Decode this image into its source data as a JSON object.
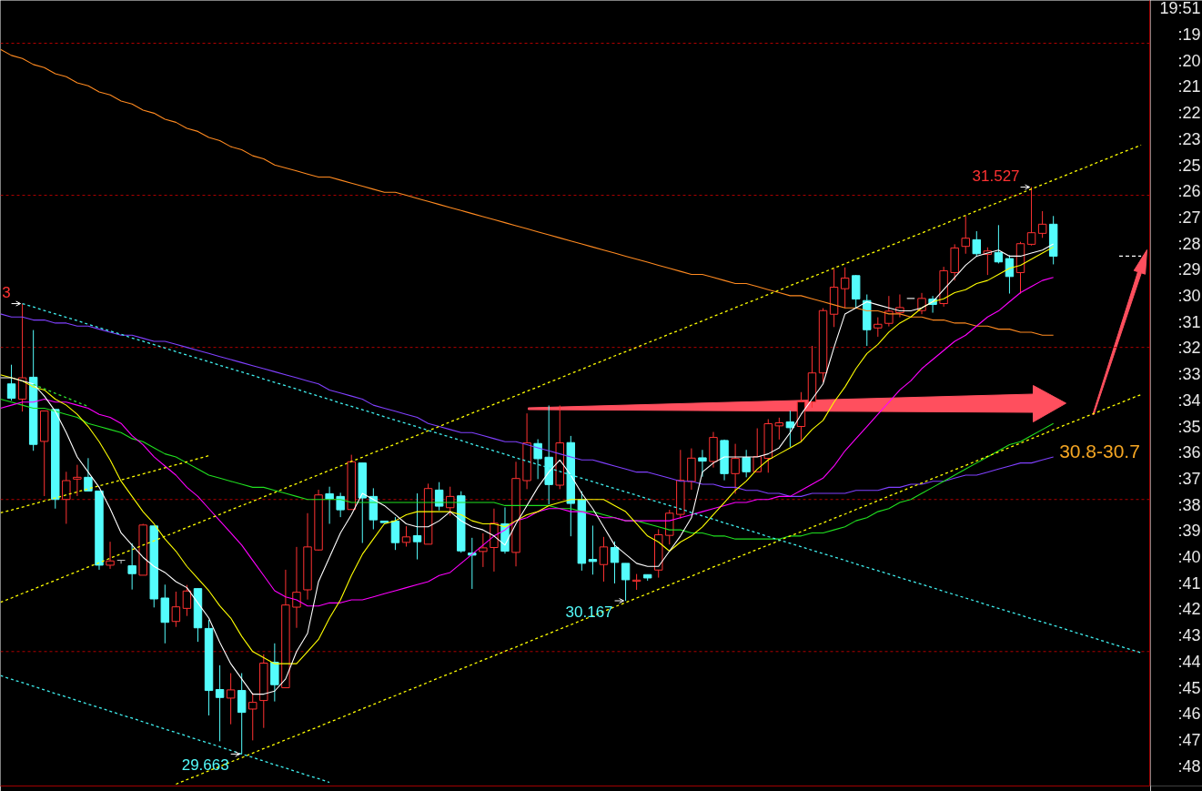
{
  "chart_data": {
    "type": "candlestick",
    "categories": [
      null,
      null,
      null,
      null,
      null,
      null,
      null,
      null,
      null,
      null,
      null,
      null,
      null,
      null,
      null,
      null,
      null,
      null,
      null,
      null,
      null,
      null,
      null,
      null,
      null,
      null,
      null,
      null,
      null,
      null,
      null,
      null,
      null,
      null,
      null,
      null,
      null,
      null,
      null,
      null,
      null,
      null,
      null,
      null,
      null,
      null,
      null,
      null,
      null,
      null,
      null,
      null,
      null,
      null,
      null,
      null,
      null,
      null,
      null,
      null,
      null,
      null,
      null,
      null,
      null,
      null,
      null,
      null,
      null,
      null,
      null,
      null,
      null,
      null,
      null,
      null,
      null,
      null,
      null,
      null,
      null,
      null,
      null,
      null,
      null,
      null,
      null,
      null,
      null,
      null,
      null,
      null,
      null,
      null,
      null,
      null,
      null,
      null,
      null,
      null,
      null,
      null,
      null,
      null,
      null
    ],
    "ohlc": [
      null,
      [
        30.88,
        30.943,
        30.825,
        30.833
      ],
      [
        30.83,
        31.144,
        30.789,
        30.9
      ],
      [
        30.902,
        31.057,
        30.66,
        30.681
      ],
      [
        30.691,
        30.791,
        30.511,
        30.791
      ],
      [
        30.796,
        30.796,
        30.47,
        30.5
      ],
      [
        30.5,
        30.591,
        30.42,
        30.562
      ],
      [
        30.567,
        30.614,
        30.511,
        30.573
      ],
      [
        30.573,
        30.636,
        30.528,
        30.528
      ],
      [
        30.528,
        30.528,
        30.269,
        30.284
      ],
      [
        30.284,
        30.361,
        30.272,
        30.298
      ],
      [
        30.3,
        30.3,
        30.289,
        30.3
      ],
      [
        30.282,
        30.356,
        30.204,
        30.256
      ],
      [
        30.251,
        30.42,
        30.251,
        30.416
      ],
      [
        30.413,
        30.413,
        30.145,
        30.173
      ],
      [
        30.176,
        30.22,
        30.027,
        30.096
      ],
      [
        30.099,
        30.197,
        30.081,
        30.147
      ],
      [
        30.142,
        30.219,
        30.117,
        30.199
      ],
      [
        30.207,
        30.207,
        30.032,
        30.078
      ],
      [
        30.076,
        30.104,
        29.79,
        29.872
      ],
      [
        29.875,
        29.955,
        29.705,
        29.849
      ],
      [
        29.847,
        29.929,
        29.761,
        29.874
      ],
      [
        29.872,
        29.929,
        29.663,
        29.8
      ],
      [
        29.811,
        29.864,
        29.708,
        29.833
      ],
      [
        29.839,
        29.991,
        29.749,
        29.962
      ],
      [
        29.965,
        30.027,
        29.836,
        29.891
      ],
      [
        29.881,
        30.269,
        29.881,
        30.153
      ],
      [
        30.146,
        30.344,
        30.078,
        30.195
      ],
      [
        30.203,
        30.455,
        30.171,
        30.344
      ],
      [
        30.334,
        30.532,
        30.332,
        30.515
      ],
      [
        30.519,
        30.542,
        30.42,
        30.502
      ],
      [
        30.51,
        30.522,
        30.442,
        30.466
      ],
      [
        30.467,
        30.647,
        30.467,
        30.624
      ],
      [
        30.62,
        30.62,
        30.357,
        30.505
      ],
      [
        30.51,
        30.537,
        30.402,
        30.433
      ],
      [
        30.429,
        30.429,
        30.424,
        30.424
      ],
      [
        30.429,
        30.442,
        30.334,
        30.358
      ],
      [
        30.359,
        30.412,
        30.345,
        30.377
      ],
      [
        30.381,
        30.52,
        30.303,
        30.361
      ],
      [
        30.353,
        30.552,
        30.353,
        30.536
      ],
      [
        30.531,
        30.557,
        30.464,
        30.478
      ],
      [
        30.473,
        30.542,
        30.447,
        30.51
      ],
      [
        30.512,
        30.527,
        30.325,
        30.331
      ],
      [
        30.324,
        30.374,
        30.206,
        30.317
      ],
      [
        30.329,
        30.389,
        30.278,
        30.341
      ],
      [
        30.342,
        30.47,
        30.263,
        30.422
      ],
      [
        30.42,
        30.474,
        30.322,
        30.33
      ],
      [
        30.326,
        30.624,
        30.28,
        30.569
      ],
      [
        30.562,
        30.783,
        30.534,
        30.686
      ],
      [
        30.684,
        30.698,
        30.567,
        30.634
      ],
      [
        30.639,
        30.809,
        30.484,
        30.549
      ],
      [
        30.547,
        30.809,
        30.534,
        30.686
      ],
      [
        30.687,
        30.709,
        30.379,
        30.487
      ],
      [
        30.499,
        30.527,
        30.266,
        30.29
      ],
      [
        30.303,
        30.414,
        30.253,
        30.296
      ],
      [
        30.286,
        30.377,
        30.23,
        30.344
      ],
      [
        30.342,
        30.362,
        30.224,
        30.293
      ],
      [
        30.29,
        30.29,
        30.167,
        30.236
      ],
      [
        30.231,
        30.255,
        30.203,
        30.235
      ],
      [
        30.253,
        30.253,
        30.233,
        30.242
      ],
      [
        30.268,
        30.402,
        30.243,
        30.384
      ],
      [
        30.382,
        30.466,
        30.352,
        30.455
      ],
      [
        30.451,
        30.663,
        30.437,
        30.563
      ],
      [
        30.559,
        30.668,
        30.532,
        30.636
      ],
      [
        30.637,
        30.663,
        30.575,
        30.626
      ],
      [
        30.625,
        30.722,
        30.605,
        30.704
      ],
      [
        30.694,
        30.697,
        30.563,
        30.585
      ],
      [
        30.585,
        30.683,
        30.519,
        30.635
      ],
      [
        30.638,
        30.663,
        30.573,
        30.591
      ],
      [
        30.591,
        30.734,
        30.591,
        30.641
      ],
      [
        30.635,
        30.764,
        30.588,
        30.749
      ],
      [
        30.742,
        30.769,
        30.697,
        30.752
      ],
      [
        30.755,
        30.792,
        30.673,
        30.736
      ],
      [
        30.74,
        30.853,
        30.69,
        30.821
      ],
      [
        30.821,
        31.005,
        30.802,
        30.916
      ],
      [
        30.916,
        31.129,
        30.886,
        31.121
      ],
      [
        31.109,
        31.258,
        31.067,
        31.198
      ],
      [
        31.193,
        31.263,
        31.129,
        31.228
      ],
      [
        31.236,
        31.238,
        31.129,
        31.159
      ],
      [
        31.154,
        31.174,
        31.005,
        31.058
      ],
      [
        31.064,
        31.099,
        31.035,
        31.076
      ],
      [
        31.079,
        31.169,
        31.069,
        31.119
      ],
      [
        31.114,
        31.174,
        31.099,
        31.131
      ],
      [
        31.161,
        31.161,
        31.161,
        31.161
      ],
      [
        31.121,
        31.179,
        31.109,
        31.161
      ],
      [
        31.159,
        31.169,
        31.114,
        31.141
      ],
      [
        31.144,
        31.265,
        31.134,
        31.252
      ],
      [
        31.246,
        31.339,
        31.22,
        31.327
      ],
      [
        31.332,
        31.432,
        31.308,
        31.359
      ],
      [
        31.354,
        31.382,
        31.298,
        31.308
      ],
      [
        31.306,
        31.329,
        31.238,
        31.317
      ],
      [
        31.312,
        31.402,
        31.276,
        31.281
      ],
      [
        31.292,
        31.303,
        31.177,
        31.233
      ],
      [
        31.246,
        31.347,
        31.177,
        31.341
      ],
      [
        31.339,
        31.527,
        31.335,
        31.377
      ],
      [
        31.375,
        31.448,
        31.36,
        31.405
      ],
      [
        31.405,
        31.432,
        31.273,
        31.3
      ],
      null,
      null,
      null,
      null,
      null,
      null,
      null,
      null
    ],
    "colors": [
      null,
      "#54fcfc",
      "#ff3232",
      "#54fcfc",
      "#ff3232",
      "#54fcfc",
      "#ff3232",
      "#ff3232",
      "#54fcfc",
      "#54fcfc",
      "#ff3232",
      "#c0c0c0",
      "#54fcfc",
      "#ff3232",
      "#54fcfc",
      "#54fcfc",
      "#ff3232",
      "#ff3232",
      "#54fcfc",
      "#54fcfc",
      "#54fcfc",
      "#ff3232",
      "#54fcfc",
      "#ff3232",
      "#ff3232",
      "#54fcfc",
      "#ff3232",
      "#ff3232",
      "#ff3232",
      "#ff3232",
      "#54fcfc",
      "#54fcfc",
      "#ff3232",
      "#54fcfc",
      "#54fcfc",
      "#54fcfc",
      "#54fcfc",
      "#ff3232",
      "#54fcfc",
      "#ff3232",
      "#54fcfc",
      "#ff3232",
      "#54fcfc",
      "#54fcfc",
      "#ff3232",
      "#ff3232",
      "#54fcfc",
      "#ff3232",
      "#ff3232",
      "#54fcfc",
      "#54fcfc",
      "#ff3232",
      "#54fcfc",
      "#54fcfc",
      "#54fcfc",
      "#ff3232",
      "#54fcfc",
      "#54fcfc",
      "#ff3232",
      "#54fcfc",
      "#ff3232",
      "#ff3232",
      "#ff3232",
      "#ff3232",
      "#54fcfc",
      "#ff3232",
      "#54fcfc",
      "#ff3232",
      "#54fcfc",
      "#ff3232",
      "#ff3232",
      "#ff3232",
      "#54fcfc",
      "#ff3232",
      "#ff3232",
      "#ff3232",
      "#ff3232",
      "#ff3232",
      "#54fcfc",
      "#54fcfc",
      "#ff3232",
      "#ff3232",
      "#ff3232",
      "#c0c0c0",
      "#ff3232",
      "#54fcfc",
      "#ff3232",
      "#ff3232",
      "#ff3232",
      "#54fcfc",
      "#ff3232",
      "#54fcfc",
      "#54fcfc",
      "#ff3232",
      "#ff3232",
      "#ff3232",
      "#54fcfc",
      null,
      null,
      null,
      null,
      null,
      null,
      null,
      null
    ],
    "series": [
      {
        "type": "line",
        "color": "#ff8a20",
        "values": [
          31.98,
          31.96,
          31.95,
          31.93,
          31.92,
          31.9,
          31.89,
          31.87,
          31.86,
          31.84,
          31.83,
          31.81,
          31.8,
          31.78,
          31.77,
          31.75,
          31.74,
          31.72,
          31.71,
          31.69,
          31.68,
          31.66,
          31.65,
          31.63,
          31.62,
          31.6,
          31.59,
          31.58,
          31.57,
          31.56,
          31.56,
          31.55,
          31.54,
          31.53,
          31.52,
          31.51,
          31.51,
          31.5,
          31.49,
          31.48,
          31.47,
          31.46,
          31.45,
          31.44,
          31.43,
          31.42,
          31.41,
          31.4,
          31.39,
          31.38,
          31.37,
          31.36,
          31.35,
          31.34,
          31.33,
          31.32,
          31.31,
          31.3,
          31.29,
          31.28,
          31.27,
          31.26,
          31.25,
          31.24,
          31.24,
          31.23,
          31.22,
          31.21,
          31.21,
          31.2,
          31.19,
          31.18,
          31.17,
          31.17,
          31.16,
          31.15,
          31.14,
          31.13,
          31.13,
          31.12,
          31.12,
          31.11,
          31.11,
          31.1,
          31.1,
          31.09,
          31.09,
          31.08,
          31.08,
          31.07,
          31.07,
          31.06,
          31.06,
          31.05,
          31.05,
          31.04,
          31.04,
          null,
          null,
          null,
          null,
          null,
          null,
          null,
          null
        ]
      },
      {
        "type": "line",
        "color": "#8040ff",
        "values": [
          31.11,
          31.1,
          31.1,
          31.09,
          31.09,
          31.08,
          31.08,
          31.07,
          31.07,
          31.06,
          31.05,
          31.04,
          31.04,
          31.03,
          31.02,
          31.02,
          31.01,
          31.0,
          30.99,
          30.98,
          30.97,
          30.96,
          30.95,
          30.94,
          30.93,
          30.92,
          30.91,
          30.9,
          30.89,
          30.88,
          30.86,
          30.85,
          30.84,
          30.83,
          30.81,
          30.8,
          30.79,
          30.78,
          30.77,
          30.75,
          30.74,
          30.73,
          30.72,
          30.72,
          30.71,
          30.7,
          30.69,
          30.69,
          30.68,
          30.67,
          30.66,
          30.65,
          30.64,
          30.63,
          30.63,
          30.62,
          30.61,
          30.6,
          30.59,
          30.59,
          30.58,
          30.57,
          30.56,
          30.56,
          30.55,
          30.55,
          30.54,
          30.54,
          30.53,
          30.53,
          30.52,
          30.52,
          30.51,
          30.51,
          30.52,
          30.52,
          30.52,
          30.52,
          30.53,
          30.53,
          30.53,
          30.54,
          30.54,
          30.55,
          30.55,
          30.56,
          30.56,
          30.57,
          30.58,
          30.58,
          30.59,
          30.6,
          30.61,
          30.62,
          30.62,
          30.63,
          30.64,
          null,
          null,
          null,
          null,
          null,
          null,
          null,
          null
        ]
      },
      {
        "type": "line",
        "color": "#20e020",
        "values": [
          30.83,
          30.82,
          30.81,
          30.8,
          30.8,
          30.79,
          30.78,
          30.77,
          30.75,
          30.74,
          30.73,
          30.72,
          30.7,
          30.69,
          30.67,
          30.65,
          30.64,
          30.62,
          30.6,
          30.58,
          30.57,
          30.56,
          30.55,
          30.54,
          30.54,
          30.53,
          30.52,
          30.51,
          30.5,
          30.5,
          30.5,
          30.5,
          30.49,
          30.49,
          30.49,
          30.49,
          30.49,
          30.49,
          30.49,
          30.49,
          30.49,
          30.49,
          30.49,
          30.49,
          30.49,
          30.49,
          30.48,
          30.48,
          30.48,
          30.48,
          30.48,
          30.47,
          30.47,
          30.46,
          30.46,
          30.45,
          30.44,
          30.43,
          30.43,
          30.42,
          30.41,
          30.4,
          30.4,
          30.39,
          30.39,
          30.38,
          30.38,
          30.37,
          30.37,
          30.37,
          30.37,
          30.37,
          30.38,
          30.38,
          30.39,
          30.39,
          30.4,
          30.41,
          30.43,
          30.44,
          30.46,
          30.47,
          30.49,
          30.5,
          30.52,
          30.54,
          30.56,
          30.58,
          30.6,
          30.62,
          30.64,
          30.66,
          30.68,
          30.69,
          30.71,
          30.73,
          30.75,
          null,
          null,
          null,
          null,
          null,
          null,
          null,
          null
        ]
      },
      {
        "type": "line",
        "color": "#ff00ff",
        "values": [
          30.8,
          30.81,
          30.82,
          30.82,
          30.83,
          30.82,
          30.82,
          30.81,
          30.8,
          30.78,
          30.77,
          30.75,
          30.71,
          30.68,
          30.64,
          30.61,
          30.58,
          30.54,
          30.51,
          30.47,
          30.43,
          30.39,
          30.35,
          30.3,
          30.25,
          30.2,
          30.18,
          30.17,
          30.15,
          30.15,
          30.16,
          30.16,
          30.17,
          30.17,
          30.18,
          30.19,
          30.2,
          30.21,
          30.22,
          30.23,
          30.25,
          30.26,
          30.29,
          30.32,
          30.35,
          30.38,
          30.4,
          30.43,
          30.44,
          30.46,
          30.47,
          30.47,
          30.46,
          30.46,
          30.45,
          30.44,
          30.44,
          30.43,
          30.43,
          30.43,
          30.43,
          30.43,
          30.44,
          30.45,
          30.46,
          30.47,
          30.48,
          30.49,
          30.49,
          30.5,
          30.5,
          30.51,
          30.51,
          30.53,
          30.55,
          30.57,
          30.61,
          30.66,
          30.7,
          30.74,
          30.78,
          30.82,
          30.86,
          30.89,
          30.93,
          30.96,
          30.99,
          31.02,
          31.04,
          31.07,
          31.1,
          31.12,
          31.15,
          31.18,
          31.2,
          31.22,
          31.23,
          null,
          null,
          null,
          null,
          null,
          null,
          null,
          null
        ]
      },
      {
        "type": "line",
        "color": "#ffff00",
        "values": [
          30.91,
          30.9,
          30.89,
          30.87,
          30.86,
          30.83,
          30.81,
          30.78,
          30.74,
          30.69,
          30.63,
          30.56,
          30.51,
          30.46,
          30.42,
          30.37,
          30.33,
          30.28,
          30.24,
          30.2,
          30.15,
          30.11,
          30.05,
          30.0,
          29.98,
          29.96,
          29.96,
          29.96,
          30.0,
          30.04,
          30.11,
          30.17,
          30.25,
          30.32,
          30.37,
          30.42,
          30.43,
          30.45,
          30.46,
          30.46,
          30.46,
          30.46,
          30.45,
          30.43,
          30.42,
          30.42,
          30.41,
          30.43,
          30.45,
          30.46,
          30.48,
          30.49,
          30.5,
          30.5,
          30.5,
          30.5,
          30.48,
          30.46,
          30.42,
          30.38,
          30.36,
          30.33,
          30.36,
          30.38,
          30.41,
          30.45,
          30.49,
          30.53,
          30.56,
          30.6,
          30.63,
          30.65,
          30.67,
          30.69,
          30.73,
          30.76,
          30.82,
          30.87,
          30.93,
          30.98,
          31.01,
          31.05,
          31.08,
          31.1,
          31.13,
          31.15,
          31.16,
          31.18,
          31.19,
          31.21,
          31.22,
          31.24,
          31.26,
          31.27,
          31.29,
          31.31,
          31.33,
          null,
          null,
          null,
          null,
          null,
          null,
          null,
          null
        ]
      },
      {
        "type": "line",
        "color": "#ffffff",
        "values": [
          30.9,
          30.9,
          30.89,
          30.88,
          30.84,
          30.79,
          30.72,
          30.64,
          30.59,
          30.54,
          30.47,
          30.39,
          30.35,
          30.31,
          30.28,
          30.26,
          30.23,
          30.21,
          30.16,
          30.11,
          30.03,
          29.96,
          29.91,
          29.86,
          29.86,
          29.87,
          29.91,
          30.0,
          30.06,
          30.23,
          30.31,
          30.39,
          30.45,
          30.52,
          30.5,
          30.48,
          30.45,
          30.42,
          30.41,
          30.41,
          30.43,
          30.46,
          30.43,
          30.41,
          30.4,
          30.38,
          30.35,
          30.42,
          30.48,
          30.54,
          30.59,
          30.63,
          30.58,
          30.52,
          30.47,
          30.41,
          30.35,
          30.32,
          30.29,
          30.28,
          30.28,
          30.33,
          30.38,
          30.44,
          30.59,
          30.62,
          30.64,
          30.64,
          30.64,
          30.64,
          30.65,
          30.67,
          30.72,
          30.78,
          30.83,
          30.88,
          31.0,
          31.11,
          31.13,
          31.15,
          31.14,
          31.13,
          31.12,
          31.12,
          31.13,
          31.15,
          31.19,
          31.23,
          31.27,
          31.3,
          31.31,
          31.32,
          31.3,
          31.3,
          31.31,
          31.32,
          31.34,
          null,
          null,
          null,
          null,
          null,
          null,
          null,
          null
        ]
      },
      {
        "type": "line",
        "color": "#ffff00",
        "line_style": "dotted",
        "values": [
          30.162,
          30.176,
          30.191,
          30.205,
          30.22,
          30.234,
          30.249,
          30.263,
          30.278,
          30.292,
          30.307,
          30.321,
          30.335,
          30.35,
          30.364,
          30.379,
          30.393,
          30.408,
          30.422,
          30.437,
          30.451,
          30.466,
          30.48,
          30.494,
          30.509,
          30.523,
          30.538,
          30.552,
          30.567,
          30.581,
          30.596,
          30.61,
          30.625,
          30.639,
          30.654,
          30.668,
          30.682,
          30.697,
          30.711,
          30.726,
          30.74,
          30.755,
          30.769,
          30.784,
          30.798,
          30.813,
          30.827,
          30.841,
          30.856,
          30.87,
          30.885,
          30.899,
          30.914,
          30.928,
          30.943,
          30.957,
          30.972,
          30.986,
          31.0,
          31.015,
          31.029,
          31.044,
          31.058,
          31.073,
          31.087,
          31.102,
          31.116,
          31.131,
          31.145,
          31.159,
          31.174,
          31.188,
          31.203,
          31.217,
          31.232,
          31.246,
          31.261,
          31.275,
          31.29,
          31.304,
          31.318,
          31.333,
          31.347,
          31.362,
          31.376,
          31.391,
          31.405,
          31.42,
          31.434,
          31.449,
          31.463,
          31.477,
          31.492,
          31.506,
          31.521,
          31.535,
          31.55,
          31.564,
          31.579,
          31.593,
          31.608,
          31.622,
          31.637,
          31.651,
          31.665
        ]
      },
      {
        "type": "line",
        "color": "#ffff00",
        "line_style": "dotted",
        "values": [
          null,
          null,
          null,
          null,
          null,
          null,
          null,
          null,
          null,
          null,
          null,
          null,
          null,
          null,
          null,
          null,
          29.564,
          29.579,
          29.593,
          29.608,
          29.622,
          29.637,
          29.651,
          29.666,
          29.681,
          29.695,
          29.71,
          29.724,
          29.739,
          29.753,
          29.768,
          29.782,
          29.797,
          29.812,
          29.826,
          29.841,
          29.855,
          29.87,
          29.884,
          29.899,
          29.914,
          29.928,
          29.943,
          29.957,
          29.972,
          29.986,
          30.001,
          30.015,
          30.03,
          30.045,
          30.059,
          30.074,
          30.088,
          30.103,
          30.117,
          30.132,
          30.147,
          30.161,
          30.176,
          30.19,
          30.205,
          30.219,
          30.234,
          30.248,
          30.263,
          30.278,
          30.292,
          30.307,
          30.321,
          30.336,
          30.35,
          30.365,
          30.38,
          30.394,
          30.409,
          30.423,
          30.438,
          30.452,
          30.467,
          30.481,
          30.496,
          30.511,
          30.525,
          30.54,
          30.554,
          30.569,
          30.583,
          30.598,
          30.612,
          30.627,
          30.642,
          30.656,
          30.671,
          30.685,
          30.7,
          30.714,
          30.729,
          30.744,
          30.758,
          30.773,
          30.787,
          30.802,
          30.816,
          30.831,
          30.845
        ]
      },
      {
        "type": "line",
        "color": "#ffff00",
        "line_style": "dotted",
        "values": [
          30.456,
          30.465,
          30.475,
          30.485,
          30.495,
          30.505,
          30.515,
          30.525,
          30.535,
          30.545,
          30.554,
          30.564,
          30.574,
          30.584,
          30.594,
          30.604,
          30.614,
          30.624,
          30.634,
          30.644,
          null,
          null,
          null,
          null,
          null,
          null,
          null,
          null,
          null,
          null,
          null,
          null,
          null,
          null,
          null,
          null,
          null,
          null,
          null,
          null,
          null,
          null,
          null,
          null,
          null,
          null,
          null,
          null,
          null,
          null,
          null,
          null,
          null,
          null,
          null,
          null,
          null,
          null,
          null,
          null,
          null,
          null,
          null,
          null,
          null,
          null,
          null,
          null,
          null,
          null,
          null,
          null,
          null,
          null,
          null,
          null,
          null,
          null,
          null,
          null,
          null,
          null,
          null,
          null,
          null,
          null,
          null,
          null,
          null,
          null,
          null,
          null,
          null,
          null,
          null,
          null,
          null,
          null,
          null,
          null,
          null,
          null,
          null,
          null,
          null
        ]
      },
      {
        "type": "line",
        "color": "#40f0f0",
        "line_style": "dotted",
        "values": [
          null,
          null,
          31.144,
          31.133,
          31.121,
          31.11,
          31.099,
          31.088,
          31.076,
          31.065,
          31.054,
          31.043,
          31.031,
          31.02,
          31.009,
          30.998,
          30.986,
          30.975,
          30.964,
          30.953,
          30.941,
          30.93,
          30.919,
          30.908,
          30.896,
          30.885,
          30.874,
          30.863,
          30.851,
          30.84,
          30.829,
          30.817,
          30.806,
          30.795,
          30.784,
          30.772,
          30.761,
          30.75,
          30.739,
          30.727,
          30.716,
          30.705,
          30.694,
          30.682,
          30.671,
          30.66,
          30.649,
          30.637,
          30.626,
          30.615,
          30.604,
          30.592,
          30.581,
          30.57,
          30.559,
          30.547,
          30.536,
          30.525,
          30.514,
          30.502,
          30.491,
          30.48,
          30.469,
          30.457,
          30.446,
          30.435,
          30.423,
          30.412,
          30.401,
          30.39,
          30.378,
          30.367,
          30.356,
          30.345,
          30.333,
          30.322,
          30.311,
          30.3,
          30.288,
          30.277,
          30.266,
          30.255,
          30.243,
          30.232,
          30.221,
          30.21,
          30.198,
          30.187,
          30.176,
          30.165,
          30.153,
          30.142,
          30.131,
          30.12,
          30.108,
          30.097,
          30.086,
          30.075,
          30.063,
          30.052,
          30.041,
          30.029,
          30.018,
          30.007,
          29.996
        ]
      },
      {
        "type": "line",
        "color": "#40f0f0",
        "line_style": "dotted",
        "values": [
          29.921,
          29.909,
          29.898,
          29.886,
          29.874,
          29.862,
          29.851,
          29.839,
          29.827,
          29.816,
          29.804,
          29.792,
          29.781,
          29.769,
          29.757,
          29.745,
          29.734,
          29.722,
          29.71,
          29.699,
          29.687,
          29.675,
          29.663,
          29.652,
          29.64,
          29.628,
          29.617,
          29.605,
          29.593,
          29.582,
          29.57,
          null,
          null,
          null,
          null,
          null,
          null,
          null,
          null,
          null,
          null,
          null,
          null,
          null,
          null,
          null,
          null,
          null,
          null,
          null,
          null,
          null,
          null,
          null,
          null,
          null,
          null,
          null,
          null,
          null,
          null,
          null,
          null,
          null,
          null,
          null,
          null,
          null,
          null,
          null,
          null,
          null,
          null,
          null,
          null,
          null,
          null,
          null,
          null,
          null,
          null,
          null,
          null,
          null,
          null,
          null,
          null,
          null,
          null,
          null,
          null,
          null,
          null,
          null,
          null,
          null,
          null,
          null,
          null,
          null,
          null,
          null,
          null,
          null,
          null
        ]
      },
      {
        "type": "line",
        "color": "#30e030",
        "line_style": "dotted",
        "values": [
          null,
          null,
          null,
          30.878,
          30.864,
          30.849,
          30.835,
          30.82,
          30.806,
          null,
          null,
          null,
          null,
          null,
          null,
          null,
          null,
          null,
          null,
          null,
          null,
          null,
          null,
          null,
          null,
          null,
          null,
          null,
          null,
          null,
          null,
          null,
          null,
          null,
          null,
          null,
          null,
          null,
          null,
          null,
          null,
          null,
          null,
          null,
          null,
          null,
          null,
          null,
          null,
          null,
          null,
          null,
          null,
          null,
          null,
          null,
          null,
          null,
          null,
          null,
          null,
          null,
          null,
          null,
          null,
          null,
          null,
          null,
          null,
          null,
          null,
          null,
          null,
          null,
          null,
          null,
          null,
          null,
          null,
          null,
          null,
          null,
          null,
          null,
          null,
          null,
          null,
          null,
          null,
          null,
          null,
          null,
          null,
          null,
          null,
          null,
          null,
          null,
          null,
          null,
          null,
          null,
          null,
          null,
          null
        ]
      },
      {
        "type": "line",
        "color": "#ffffff",
        "line_style": "dashed",
        "values": [
          null,
          null,
          null,
          null,
          null,
          null,
          null,
          null,
          null,
          null,
          null,
          null,
          null,
          null,
          null,
          null,
          null,
          null,
          null,
          null,
          null,
          null,
          null,
          null,
          null,
          null,
          null,
          null,
          null,
          null,
          null,
          null,
          null,
          null,
          null,
          null,
          null,
          null,
          null,
          null,
          null,
          null,
          null,
          null,
          null,
          null,
          null,
          null,
          null,
          null,
          null,
          null,
          null,
          null,
          null,
          null,
          null,
          null,
          null,
          null,
          null,
          null,
          null,
          null,
          null,
          null,
          null,
          null,
          null,
          null,
          null,
          null,
          null,
          null,
          null,
          null,
          null,
          null,
          null,
          null,
          null,
          null,
          null,
          null,
          null,
          null,
          null,
          null,
          null,
          null,
          null,
          null,
          null,
          null,
          null,
          null,
          null,
          null,
          null,
          null,
          null,
          null,
          31.3,
          31.3,
          31.3
        ]
      }
    ],
    "ref_lines": [
      {
        "axis": "y",
        "value": 30,
        "color": "#b00000",
        "line_style": "dotted"
      },
      {
        "axis": "y",
        "value": 30.5,
        "color": "#b00000",
        "line_style": "dotted"
      },
      {
        "axis": "y",
        "value": 31,
        "color": "#b00000",
        "line_style": "dotted"
      },
      {
        "axis": "y",
        "value": 31.5,
        "color": "#b00000",
        "line_style": "dotted"
      },
      {
        "axis": "y",
        "value": 32,
        "color": "#b00000",
        "line_style": "dotted"
      }
    ],
    "annotations": [
      "31.527",
      "30.167",
      "29.663",
      "3",
      "30.8-30.7",
      "19:51",
      ":19",
      ":20",
      ":21",
      ":22",
      ":23",
      ":25",
      ":26",
      ":27",
      ":28",
      ":29",
      ":30",
      ":31",
      ":32",
      ":33",
      ":34",
      ":35",
      ":36",
      ":37",
      ":38",
      ":39",
      ":40",
      ":41",
      ":42",
      ":43",
      ":44",
      ":45",
      ":46",
      ":47",
      ":48"
    ]
  }
}
